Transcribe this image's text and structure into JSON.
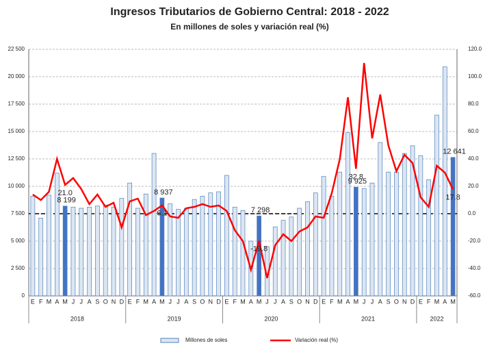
{
  "chart_data": {
    "type": "bar_line",
    "title": "Ingresos Tributarios de Gobierno Central: 2018 - 2022",
    "subtitle": "En millones de soles y variación real (%)",
    "categories": [
      "E",
      "F",
      "M",
      "A",
      "M",
      "J",
      "J",
      "A",
      "S",
      "O",
      "N",
      "D",
      "E",
      "F",
      "M",
      "A",
      "M",
      "J",
      "J",
      "A",
      "S",
      "O",
      "N",
      "D",
      "E",
      "F",
      "M",
      "A",
      "M",
      "J",
      "J",
      "A",
      "S",
      "O",
      "N",
      "D",
      "E",
      "F",
      "M",
      "A",
      "M",
      "J",
      "J",
      "A",
      "S",
      "O",
      "N",
      "D",
      "E",
      "F",
      "M",
      "A",
      "M"
    ],
    "groups": [
      {
        "label": "2018",
        "months": 12
      },
      {
        "label": "2019",
        "months": 12
      },
      {
        "label": "2020",
        "months": 12
      },
      {
        "label": "2021",
        "months": 12
      },
      {
        "label": "2022",
        "months": 5
      }
    ],
    "series": [
      {
        "name": "Millones de soles",
        "kind": "bar",
        "color": "#dce6f2",
        "stroke": "#4f81bd",
        "highlight_color": "#4472c4",
        "values": [
          9100,
          7100,
          9200,
          11200,
          8199,
          8100,
          8000,
          8100,
          8200,
          8300,
          8100,
          8900,
          10300,
          8000,
          9300,
          13000,
          8937,
          8400,
          7900,
          8000,
          8800,
          9100,
          9400,
          9500,
          11000,
          8100,
          7800,
          5000,
          7298,
          4500,
          6300,
          6900,
          7200,
          8000,
          8600,
          9400,
          10900,
          9100,
          11300,
          14900,
          9925,
          9800,
          10300,
          14000,
          11300,
          11300,
          13000,
          13700,
          12800,
          10600,
          16500,
          20900,
          12641
        ],
        "value_labels": [
          null,
          null,
          null,
          null,
          "8 199",
          null,
          null,
          null,
          null,
          null,
          null,
          null,
          null,
          null,
          null,
          null,
          "8 937",
          null,
          null,
          null,
          null,
          null,
          null,
          null,
          null,
          null,
          null,
          null,
          "7 298",
          null,
          null,
          null,
          null,
          null,
          null,
          null,
          null,
          null,
          null,
          null,
          "9 925",
          null,
          null,
          null,
          null,
          null,
          null,
          null,
          null,
          null,
          null,
          null,
          "12 641"
        ]
      },
      {
        "name": "Variación real (%)",
        "kind": "line",
        "axis": "y2",
        "color": "#ff0000",
        "values": [
          14,
          10,
          16,
          40,
          21.0,
          26,
          18,
          7,
          14,
          5,
          8,
          -10,
          9,
          11,
          -1,
          2,
          6.1,
          -2,
          -3,
          4,
          5,
          7,
          5,
          6,
          2,
          -12,
          -20,
          -41,
          -19.8,
          -47,
          -23,
          -15,
          -20,
          -13,
          -10,
          -2,
          -3,
          15,
          40,
          85,
          32.8,
          110,
          55,
          87,
          50,
          31,
          43,
          37,
          12,
          5,
          35,
          30,
          17.8
        ],
        "value_labels": [
          null,
          null,
          null,
          null,
          "21.0",
          null,
          null,
          null,
          null,
          null,
          null,
          null,
          null,
          null,
          null,
          null,
          "6.1",
          null,
          null,
          null,
          null,
          null,
          null,
          null,
          null,
          null,
          null,
          null,
          "-19.8",
          null,
          null,
          null,
          null,
          null,
          null,
          null,
          null,
          null,
          null,
          null,
          "32.8",
          null,
          null,
          null,
          null,
          null,
          null,
          null,
          null,
          null,
          null,
          null,
          "17.8"
        ]
      }
    ],
    "ylim": [
      0,
      22500
    ],
    "yticks": [
      0,
      {
        "value": 2500,
        "label": "2 500"
      },
      {
        "value": 5000,
        "label": "5 000"
      },
      {
        "value": 7500,
        "label": "7 500"
      },
      {
        "value": 10000,
        "label": "10 000"
      },
      {
        "value": 12500,
        "label": "12 500"
      },
      {
        "value": 15000,
        "label": "15 000"
      },
      {
        "value": 17500,
        "label": "17 500"
      },
      {
        "value": 20000,
        "label": "20 000"
      },
      {
        "value": 22500,
        "label": "22 500"
      }
    ],
    "y2lim": [
      -60,
      120
    ],
    "y2ticks": [
      {
        "value": -60,
        "label": "-60.0"
      },
      {
        "value": -40,
        "label": "-40.0"
      },
      {
        "value": -20,
        "label": "-20.0"
      },
      {
        "value": 0,
        "label": "0.0"
      },
      {
        "value": 20,
        "label": "20.0"
      },
      {
        "value": 40,
        "label": "40.0"
      },
      {
        "value": 60,
        "label": "60.0"
      },
      {
        "value": 80,
        "label": "80.0"
      },
      {
        "value": 100,
        "label": "100.0"
      },
      {
        "value": 120,
        "label": "120.0"
      }
    ],
    "grid": true,
    "legend": "bottom"
  }
}
